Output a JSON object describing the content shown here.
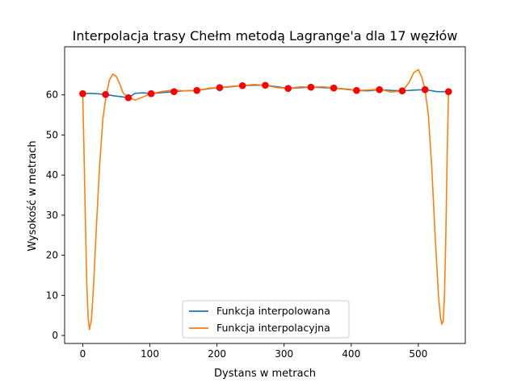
{
  "chart_data": {
    "type": "line",
    "title": "Interpolacja trasy Chełm metodą Lagrange'a dla 17 węzłów",
    "xlabel": "Dystans w metrach",
    "ylabel": "Wysokość w metrach",
    "xlim": [
      -27,
      570
    ],
    "ylim": [
      -2,
      72
    ],
    "xticks": [
      0,
      100,
      200,
      300,
      400,
      500
    ],
    "yticks": [
      0,
      10,
      20,
      30,
      40,
      50,
      60
    ],
    "grid": false,
    "legend_position": "lower-center",
    "colors": {
      "interpolated": "#1f77b4",
      "interpolating": "#ff7f0e",
      "nodes": "#ff0000"
    },
    "series": [
      {
        "name": "Funkcja interpolowana",
        "x": [
          0,
          10,
          20,
          35,
          45,
          55,
          68,
          78,
          90,
          102,
          120,
          136,
          150,
          170,
          190,
          205,
          220,
          238,
          255,
          272,
          290,
          306,
          325,
          340,
          358,
          375,
          395,
          408,
          425,
          442,
          460,
          476,
          495,
          510,
          528,
          545
        ],
        "y": [
          60.3,
          60.4,
          60.3,
          60.1,
          59.8,
          59.6,
          59.3,
          60.4,
          60.5,
          60.3,
          60.6,
          60.8,
          61.0,
          61.1,
          61.6,
          61.8,
          62.0,
          62.3,
          62.4,
          62.4,
          62.0,
          61.6,
          61.8,
          61.9,
          61.8,
          61.7,
          61.4,
          61.1,
          61.0,
          61.3,
          61.1,
          61.0,
          61.2,
          61.3,
          60.8,
          60.8
        ]
      },
      {
        "name": "Funkcja interpolacyjna",
        "x": [
          0,
          2,
          4,
          6,
          8,
          10,
          13,
          16,
          20,
          25,
          30,
          35,
          40,
          45,
          50,
          55,
          60,
          68,
          78,
          90,
          102,
          120,
          136,
          150,
          170,
          190,
          205,
          220,
          238,
          255,
          272,
          290,
          306,
          325,
          340,
          358,
          375,
          395,
          408,
          425,
          442,
          460,
          476,
          486,
          493,
          500,
          505,
          510,
          515,
          520,
          525,
          530,
          533,
          535,
          537,
          539,
          541,
          543,
          545
        ],
        "y": [
          60.3,
          45.0,
          28.0,
          13.0,
          4.5,
          1.5,
          4.0,
          12.0,
          26.0,
          42.0,
          54.0,
          60.1,
          63.8,
          65.2,
          64.6,
          62.8,
          60.5,
          59.3,
          58.7,
          59.5,
          60.3,
          60.9,
          61.2,
          61.0,
          61.1,
          61.7,
          61.8,
          62.1,
          62.3,
          62.6,
          62.4,
          61.8,
          61.6,
          62.0,
          61.9,
          62.0,
          61.7,
          61.3,
          61.1,
          61.2,
          61.4,
          60.7,
          61.0,
          63.0,
          65.5,
          66.3,
          64.5,
          61.3,
          55.0,
          42.0,
          25.0,
          10.0,
          4.5,
          2.8,
          3.5,
          10.0,
          25.0,
          45.0,
          60.8
        ]
      },
      {
        "name": "",
        "kind": "nodes",
        "x": [
          0,
          34,
          68,
          102,
          136,
          170,
          204,
          238,
          272,
          306,
          340,
          374,
          408,
          442,
          476,
          510,
          545
        ],
        "y": [
          60.3,
          60.1,
          59.3,
          60.3,
          60.8,
          61.1,
          61.8,
          62.3,
          62.4,
          61.6,
          61.9,
          61.7,
          61.1,
          61.3,
          61.0,
          61.3,
          60.8
        ]
      }
    ]
  }
}
